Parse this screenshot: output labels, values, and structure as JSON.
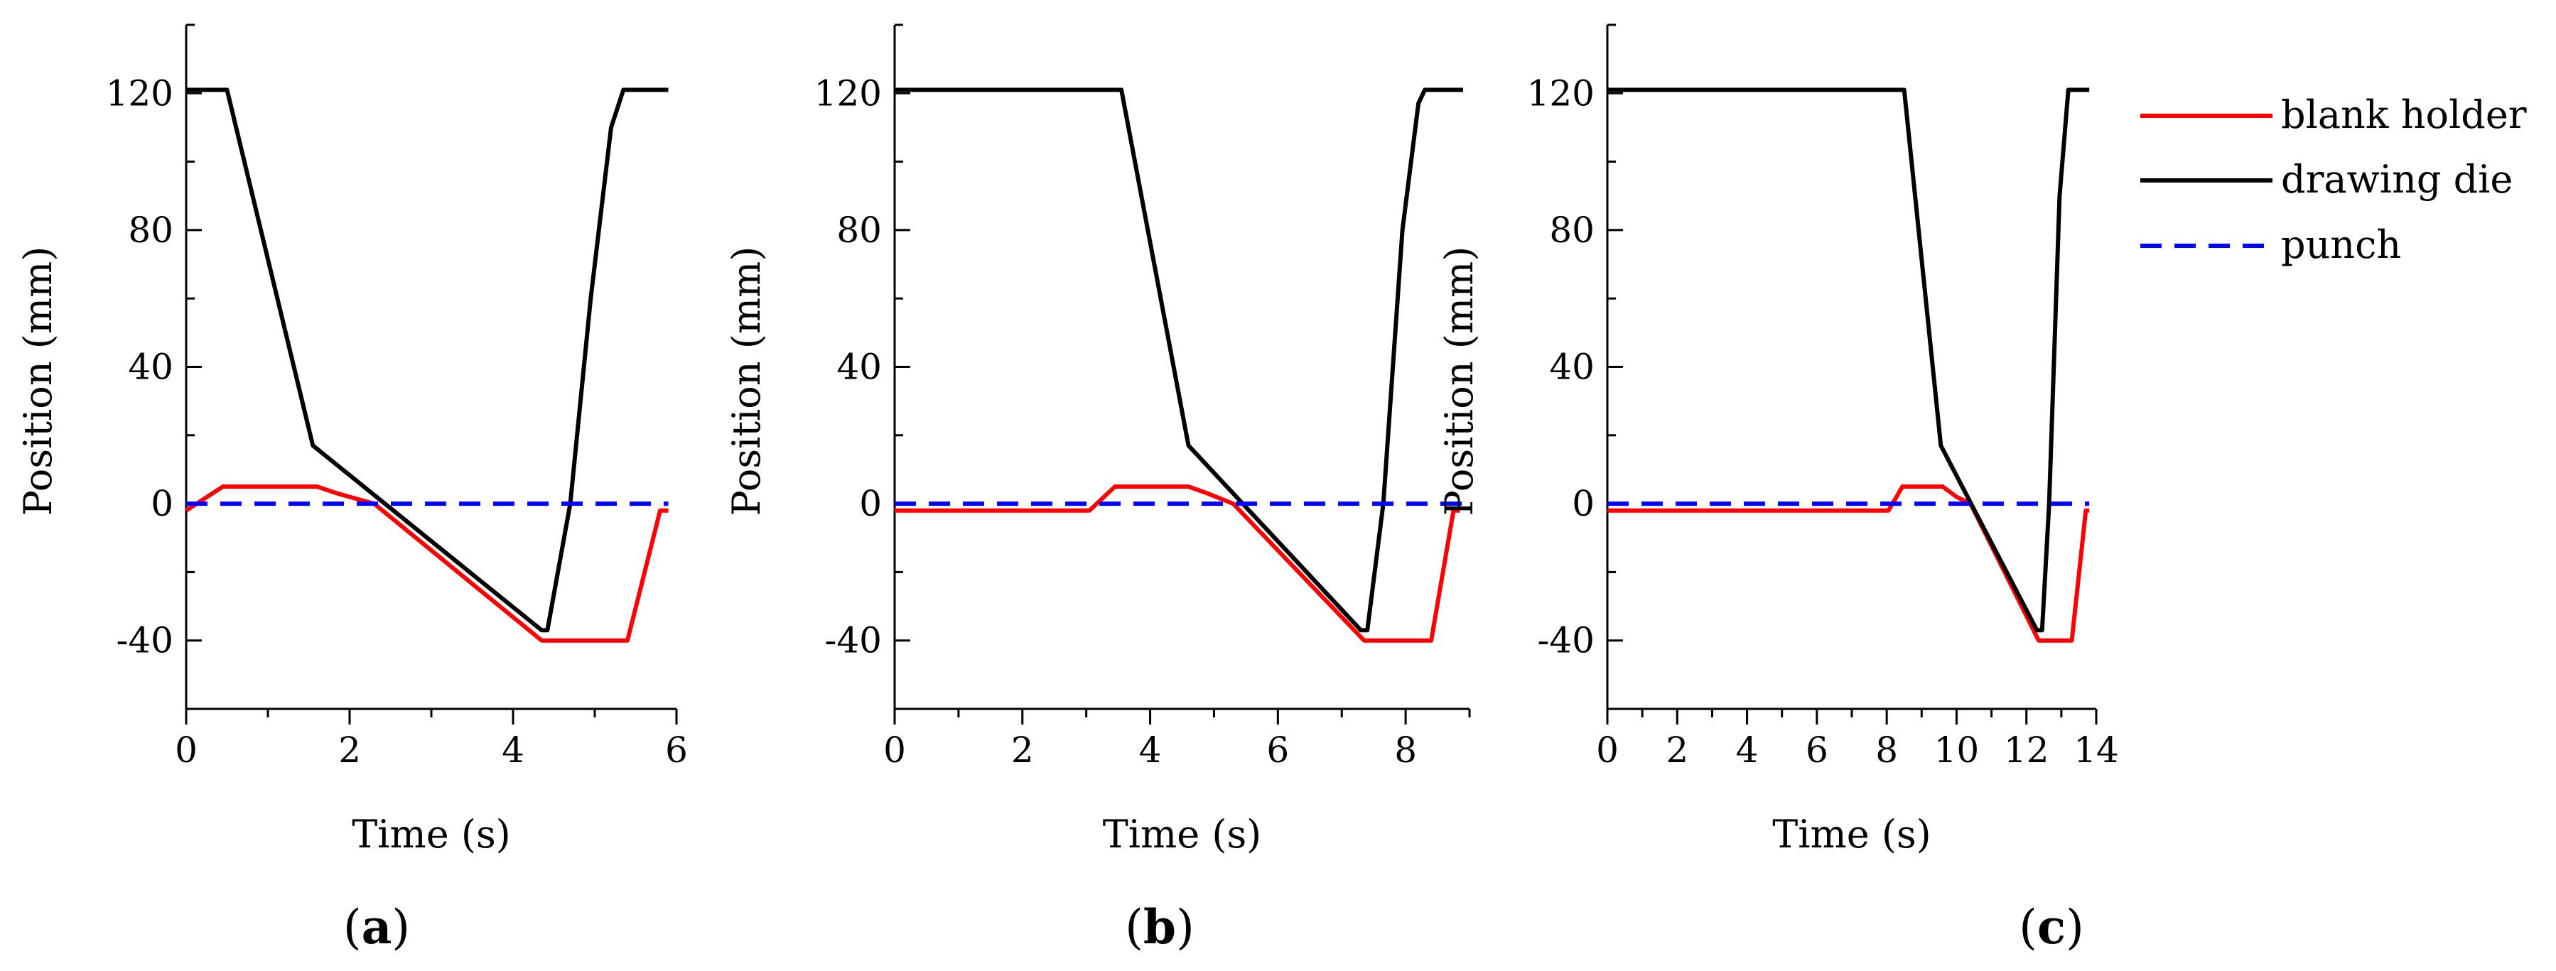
{
  "chart_data": [
    {
      "type": "line",
      "panel_label": "(a)",
      "xlabel": "Time (s)",
      "ylabel": "Position (mm)",
      "xlim": [
        0,
        6
      ],
      "ylim": [
        -60,
        140
      ],
      "xticks": [
        0,
        2,
        4,
        6
      ],
      "yticks": [
        -40,
        0,
        40,
        80,
        120
      ],
      "series": [
        {
          "name": "blank holder",
          "color": "#ff0000",
          "style": "solid",
          "points": [
            [
              0,
              -2
            ],
            [
              0.45,
              5
            ],
            [
              1.6,
              5
            ],
            [
              1.85,
              3
            ],
            [
              2.3,
              0
            ],
            [
              4.35,
              -40
            ],
            [
              5.4,
              -40
            ],
            [
              5.8,
              -2
            ],
            [
              5.9,
              -2
            ]
          ]
        },
        {
          "name": "drawing die",
          "color": "#000000",
          "style": "solid",
          "points": [
            [
              0,
              121
            ],
            [
              0.5,
              121
            ],
            [
              1.55,
              17
            ],
            [
              4.35,
              -37
            ],
            [
              4.42,
              -37
            ],
            [
              4.7,
              0
            ],
            [
              4.95,
              60
            ],
            [
              5.2,
              110
            ],
            [
              5.35,
              121
            ],
            [
              5.9,
              121
            ]
          ]
        },
        {
          "name": "punch",
          "color": "#0000ff",
          "style": "dashed",
          "points": [
            [
              0,
              0
            ],
            [
              5.9,
              0
            ]
          ]
        }
      ]
    },
    {
      "type": "line",
      "panel_label": "(b)",
      "xlabel": "Time (s)",
      "ylabel": "Position (mm)",
      "xlim": [
        0,
        9
      ],
      "ylim": [
        -60,
        140
      ],
      "xticks": [
        0,
        2,
        4,
        6,
        8
      ],
      "yticks": [
        -40,
        0,
        40,
        80,
        120
      ],
      "series": [
        {
          "name": "blank holder",
          "color": "#ff0000",
          "style": "solid",
          "points": [
            [
              0,
              -2
            ],
            [
              3.05,
              -2
            ],
            [
              3.45,
              5
            ],
            [
              4.6,
              5
            ],
            [
              4.9,
              3
            ],
            [
              5.3,
              0
            ],
            [
              7.35,
              -40
            ],
            [
              8.4,
              -40
            ],
            [
              8.75,
              -2
            ],
            [
              8.85,
              -2
            ]
          ]
        },
        {
          "name": "drawing die",
          "color": "#000000",
          "style": "solid",
          "points": [
            [
              0,
              121
            ],
            [
              3.55,
              121
            ],
            [
              4.6,
              17
            ],
            [
              7.3,
              -37
            ],
            [
              7.4,
              -37
            ],
            [
              7.65,
              0
            ],
            [
              7.95,
              80
            ],
            [
              8.2,
              117
            ],
            [
              8.3,
              121
            ],
            [
              8.9,
              121
            ]
          ]
        },
        {
          "name": "punch",
          "color": "#0000ff",
          "style": "dashed",
          "points": [
            [
              0,
              0
            ],
            [
              8.9,
              0
            ]
          ]
        }
      ]
    },
    {
      "type": "line",
      "panel_label": "(c)",
      "xlabel": "Time (s)",
      "ylabel": "Position (mm)",
      "xlim": [
        0,
        14
      ],
      "ylim": [
        -60,
        140
      ],
      "xticks": [
        0,
        2,
        4,
        6,
        8,
        10,
        12,
        14
      ],
      "yticks": [
        -40,
        0,
        40,
        80,
        120
      ],
      "series": [
        {
          "name": "blank holder",
          "color": "#ff0000",
          "style": "solid",
          "points": [
            [
              0,
              -2
            ],
            [
              8.05,
              -2
            ],
            [
              8.45,
              5
            ],
            [
              9.6,
              5
            ],
            [
              10.0,
              2
            ],
            [
              10.4,
              0
            ],
            [
              12.35,
              -40
            ],
            [
              13.3,
              -40
            ],
            [
              13.7,
              -2
            ],
            [
              13.8,
              -2
            ]
          ]
        },
        {
          "name": "drawing die",
          "color": "#000000",
          "style": "solid",
          "points": [
            [
              0,
              121
            ],
            [
              8.5,
              121
            ],
            [
              9.55,
              17
            ],
            [
              12.3,
              -37
            ],
            [
              12.45,
              -37
            ],
            [
              12.65,
              0
            ],
            [
              12.95,
              90
            ],
            [
              13.2,
              121
            ],
            [
              13.8,
              121
            ]
          ]
        },
        {
          "name": "punch",
          "color": "#0000ff",
          "style": "dashed",
          "points": [
            [
              0,
              0
            ],
            [
              13.8,
              0
            ]
          ]
        }
      ]
    }
  ],
  "legend": [
    {
      "label": "blank holder",
      "color": "#ff0000",
      "style": "solid"
    },
    {
      "label": "drawing die",
      "color": "#000000",
      "style": "solid"
    },
    {
      "label": "punch",
      "color": "#0000ff",
      "style": "dashed"
    }
  ]
}
